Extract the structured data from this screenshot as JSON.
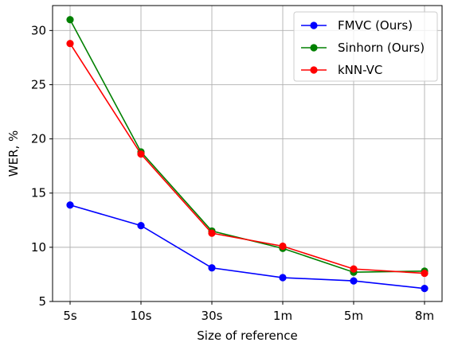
{
  "chart_data": {
    "type": "line",
    "title": "",
    "xlabel": "Size of reference",
    "ylabel": "WER, %",
    "categories": [
      "5s",
      "10s",
      "30s",
      "1m",
      "5m",
      "8m"
    ],
    "ylim": [
      5,
      32.3
    ],
    "yticks": [
      5,
      10,
      15,
      20,
      25,
      30
    ],
    "grid": true,
    "legend_position": "top-right",
    "series": [
      {
        "name": "FMVC (Ours)",
        "color": "#0000ff",
        "values": [
          13.9,
          12.0,
          8.1,
          7.2,
          6.9,
          6.2
        ]
      },
      {
        "name": "Sinhorn (Ours)",
        "color": "#008000",
        "values": [
          31.0,
          18.8,
          11.5,
          9.9,
          7.7,
          7.8
        ]
      },
      {
        "name": "kNN-VC",
        "color": "#ff0000",
        "values": [
          28.8,
          18.6,
          11.3,
          10.1,
          8.0,
          7.6
        ]
      }
    ]
  }
}
